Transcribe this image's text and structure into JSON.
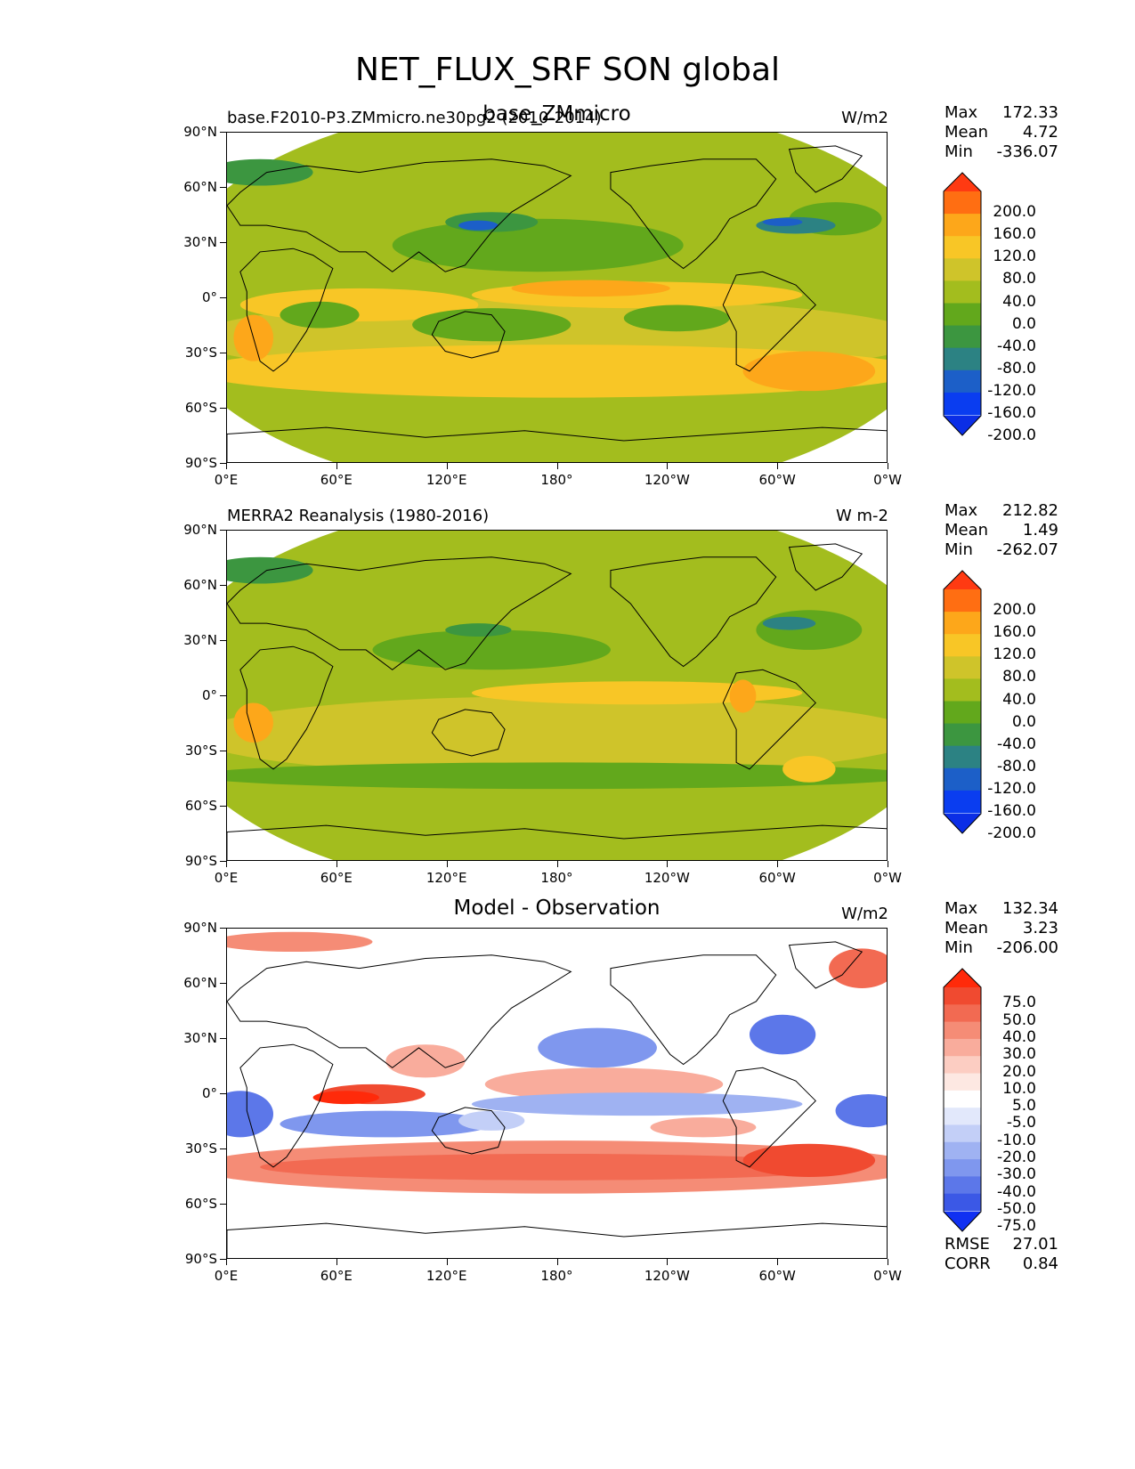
{
  "title": "NET_FLUX_SRF SON global",
  "lat_ticks": [
    "90°N",
    "60°N",
    "30°N",
    "0°",
    "30°S",
    "60°S",
    "90°S"
  ],
  "lon_ticks": [
    "0°E",
    "60°E",
    "120°E",
    "180°",
    "120°W",
    "60°W",
    "0°W"
  ],
  "panels": [
    {
      "left_title": "base.F2010-P3.ZMmicro.ne30pg2 (2010-2014)",
      "center_title": "base_ZMmicro",
      "units": "W/m2",
      "stats": {
        "max_label": "Max",
        "max": "172.33",
        "mean_label": "Mean",
        "mean": "4.72",
        "min_label": "Min",
        "min": "-336.07"
      },
      "levels": [
        "200.0",
        "160.0",
        "120.0",
        "80.0",
        "40.0",
        "0.0",
        "-40.0",
        "-80.0",
        "-120.0",
        "-160.0",
        "-200.0"
      ],
      "colors": [
        "#ff3a12",
        "#ff6e12",
        "#fda71a",
        "#f8c626",
        "#cfc42a",
        "#a3bd1e",
        "#62a81c",
        "#3c9640",
        "#2c8283",
        "#1c5fc8",
        "#0a3df0",
        "#0b2ee6"
      ]
    },
    {
      "left_title": "MERRA2 Reanalysis (1980-2016)",
      "center_title": "",
      "units": "W m-2",
      "stats": {
        "max_label": "Max",
        "max": "212.82",
        "mean_label": "Mean",
        "mean": "1.49",
        "min_label": "Min",
        "min": "-262.07"
      },
      "levels": [
        "200.0",
        "160.0",
        "120.0",
        "80.0",
        "40.0",
        "0.0",
        "-40.0",
        "-80.0",
        "-120.0",
        "-160.0",
        "-200.0"
      ],
      "colors": [
        "#ff3a12",
        "#ff6e12",
        "#fda71a",
        "#f8c626",
        "#cfc42a",
        "#a3bd1e",
        "#62a81c",
        "#3c9640",
        "#2c8283",
        "#1c5fc8",
        "#0a3df0",
        "#0b2ee6"
      ]
    },
    {
      "left_title": "",
      "center_title": "Model - Observation",
      "units": "W/m2",
      "stats": {
        "max_label": "Max",
        "max": "132.34",
        "mean_label": "Mean",
        "mean": "3.23",
        "min_label": "Min",
        "min": "-206.00"
      },
      "levels": [
        "75.0",
        "50.0",
        "40.0",
        "30.0",
        "20.0",
        "10.0",
        "5.0",
        "-5.0",
        "-10.0",
        "-20.0",
        "-30.0",
        "-40.0",
        "-50.0",
        "-75.0"
      ],
      "colors": [
        "#ff2a0a",
        "#f04a30",
        "#f26a52",
        "#f58c76",
        "#f9ac9c",
        "#fccdc2",
        "#fde8e2",
        "#ffffff",
        "#e2e8fb",
        "#c3cff7",
        "#9fb2f2",
        "#7f97ee",
        "#5c77e9",
        "#3b58e6",
        "#1030f2"
      ],
      "rmse_label": "RMSE",
      "rmse": "27.01",
      "corr_label": "CORR",
      "corr": "0.84"
    }
  ]
}
